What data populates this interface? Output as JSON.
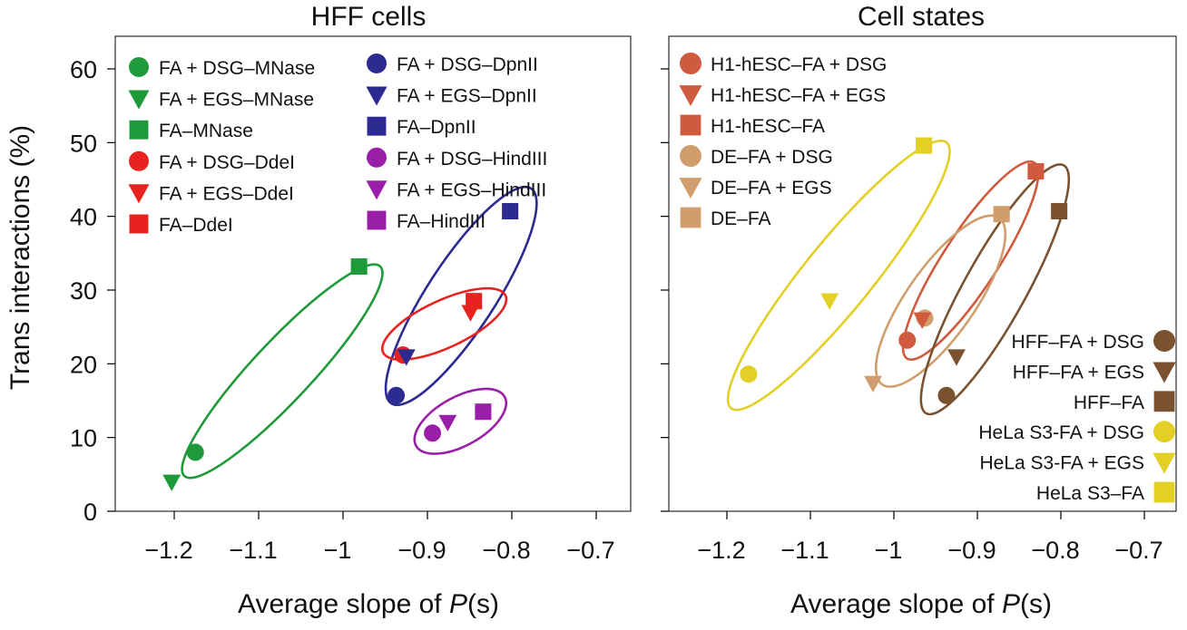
{
  "chart_data": [
    {
      "type": "scatter",
      "title": "HFF cells",
      "xlabel": "Average slope of ",
      "xlabel_italic": "P",
      "xlabel_suffix": "(s)",
      "ylabel": "Trans interactions (%)",
      "xlim": [
        -1.265,
        -0.655
      ],
      "ylim": [
        0,
        63
      ],
      "xticks": [
        -1.2,
        -1.1,
        -1,
        -0.9,
        -0.8,
        -0.7
      ],
      "xtick_labels": [
        "−1.2",
        "−1.1",
        "−1",
        "−0.9",
        "−0.8",
        "−0.7"
      ],
      "yticks": [
        0,
        10,
        20,
        30,
        40,
        50,
        60
      ],
      "ytick_labels": [
        "0",
        "10",
        "20",
        "30",
        "40",
        "50",
        "60"
      ],
      "legend": [
        {
          "label": "FA + DSG–MNase",
          "color": "#1f9a3a",
          "marker": "circle"
        },
        {
          "label": "FA + EGS–MNase",
          "color": "#1f9a3a",
          "marker": "triangle"
        },
        {
          "label": "FA–MNase",
          "color": "#1f9a3a",
          "marker": "square"
        },
        {
          "label": "FA + DSG–DdeI",
          "color": "#e8231f",
          "marker": "circle"
        },
        {
          "label": "FA + EGS–DdeI",
          "color": "#e8231f",
          "marker": "triangle"
        },
        {
          "label": "FA–DdeI",
          "color": "#e8231f",
          "marker": "square"
        },
        {
          "label": "FA + DSG–DpnII",
          "color": "#2d2a92",
          "marker": "circle"
        },
        {
          "label": "FA + EGS–DpnII",
          "color": "#2d2a92",
          "marker": "triangle"
        },
        {
          "label": "FA–DpnII",
          "color": "#2d2a92",
          "marker": "square"
        },
        {
          "label": "FA + DSG–HindIII",
          "color": "#9a1fa8",
          "marker": "circle"
        },
        {
          "label": "FA + EGS–HindIII",
          "color": "#9a1fa8",
          "marker": "triangle"
        },
        {
          "label": "FA–HindIII",
          "color": "#9a1fa8",
          "marker": "square"
        }
      ],
      "points": [
        {
          "series": "FA + DSG–MNase",
          "x": -1.175,
          "y": 8.0,
          "marker": "circle",
          "color": "#1f9a3a"
        },
        {
          "series": "FA + EGS–MNase",
          "x": -1.203,
          "y": 4.0,
          "marker": "triangle",
          "color": "#1f9a3a"
        },
        {
          "series": "FA–MNase",
          "x": -0.981,
          "y": 33.2,
          "marker": "square",
          "color": "#1f9a3a"
        },
        {
          "series": "FA + DSG–DdeI",
          "x": -0.929,
          "y": 21.2,
          "marker": "circle",
          "color": "#e8231f"
        },
        {
          "series": "FA + EGS–DdeI",
          "x": -0.849,
          "y": 27.0,
          "marker": "triangle",
          "color": "#e8231f"
        },
        {
          "series": "FA–DdeI",
          "x": -0.845,
          "y": 28.5,
          "marker": "square",
          "color": "#e8231f"
        },
        {
          "series": "FA + DSG–DpnII",
          "x": -0.937,
          "y": 15.7,
          "marker": "circle",
          "color": "#2d2a92"
        },
        {
          "series": "FA + EGS–DpnII",
          "x": -0.925,
          "y": 21.0,
          "marker": "triangle",
          "color": "#2d2a92"
        },
        {
          "series": "FA–DpnII",
          "x": -0.802,
          "y": 40.7,
          "marker": "square",
          "color": "#2d2a92"
        },
        {
          "series": "FA + DSG–HindIII",
          "x": -0.894,
          "y": 10.6,
          "marker": "circle",
          "color": "#9a1fa8"
        },
        {
          "series": "FA + EGS–HindIII",
          "x": -0.876,
          "y": 12.1,
          "marker": "triangle",
          "color": "#9a1fa8"
        },
        {
          "series": "FA–HindIII",
          "x": -0.834,
          "y": 13.5,
          "marker": "square",
          "color": "#9a1fa8"
        }
      ],
      "ellipses": [
        {
          "color": "#1f9a3a",
          "cx": -1.072,
          "cy": 19.0,
          "rx": 0.17,
          "ry": 4.0,
          "angle_deg": -47
        },
        {
          "color": "#2d2a92",
          "cx": -0.86,
          "cy": 29.2,
          "rx": 0.152,
          "ry": 4.6,
          "angle_deg": -57
        },
        {
          "color": "#e8231f",
          "cx": -0.88,
          "cy": 25.4,
          "rx": 0.08,
          "ry": 3.2,
          "angle_deg": -25
        },
        {
          "color": "#9a1fa8",
          "cx": -0.861,
          "cy": 12.2,
          "rx": 0.06,
          "ry": 3.3,
          "angle_deg": -29
        }
      ]
    },
    {
      "type": "scatter",
      "title": "Cell states",
      "xlabel": "Average slope of ",
      "xlabel_italic": "P",
      "xlabel_suffix": "(s)",
      "xlim": [
        -1.265,
        -0.655
      ],
      "ylim": [
        0,
        63
      ],
      "xticks": [
        -1.2,
        -1.1,
        -1,
        -0.9,
        -0.8,
        -0.7
      ],
      "xtick_labels": [
        "−1.2",
        "−1.1",
        "−1",
        "−0.9",
        "−0.8",
        "−0.7"
      ],
      "yticks": [
        0,
        10,
        20,
        30,
        40,
        50,
        60
      ],
      "legend_top": [
        {
          "label": "H1-hESC–FA + DSG",
          "color": "#cf5a3d",
          "marker": "circle"
        },
        {
          "label": "H1-hESC–FA + EGS",
          "color": "#cf5a3d",
          "marker": "triangle"
        },
        {
          "label": "H1-hESC–FA",
          "color": "#cf5a3d",
          "marker": "square"
        },
        {
          "label": "DE–FA + DSG",
          "color": "#cf9e6c",
          "marker": "circle"
        },
        {
          "label": "DE–FA + EGS",
          "color": "#cf9e6c",
          "marker": "triangle"
        },
        {
          "label": "DE–FA",
          "color": "#cf9e6c",
          "marker": "square"
        }
      ],
      "legend_bottom": [
        {
          "label": "HFF–FA + DSG",
          "color": "#7a5230",
          "marker": "circle"
        },
        {
          "label": "HFF–FA + EGS",
          "color": "#7a5230",
          "marker": "triangle"
        },
        {
          "label": "HFF–FA",
          "color": "#7a5230",
          "marker": "square"
        },
        {
          "label": "HeLa S3-FA + DSG",
          "color": "#e3cf25",
          "marker": "circle"
        },
        {
          "label": "HeLa S3-FA + EGS",
          "color": "#e3cf25",
          "marker": "triangle"
        },
        {
          "label": "HeLa S3–FA",
          "color": "#e3cf25",
          "marker": "square"
        }
      ],
      "points": [
        {
          "series": "HeLa S3-FA + DSG",
          "x": -1.174,
          "y": 18.6,
          "marker": "circle",
          "color": "#e3cf25"
        },
        {
          "series": "HeLa S3-FA + EGS",
          "x": -1.077,
          "y": 28.6,
          "marker": "triangle",
          "color": "#e3cf25"
        },
        {
          "series": "HeLa S3–FA",
          "x": -0.964,
          "y": 49.6,
          "marker": "square",
          "color": "#e3cf25"
        },
        {
          "series": "DE–FA + DSG",
          "x": -0.963,
          "y": 26.2,
          "marker": "circle",
          "color": "#cf9e6c"
        },
        {
          "series": "DE–FA + EGS",
          "x": -1.025,
          "y": 17.4,
          "marker": "triangle",
          "color": "#cf9e6c"
        },
        {
          "series": "DE–FA",
          "x": -0.871,
          "y": 40.3,
          "marker": "square",
          "color": "#cf9e6c"
        },
        {
          "series": "H1-hESC–FA + DSG",
          "x": -0.984,
          "y": 23.2,
          "marker": "circle",
          "color": "#cf5a3d"
        },
        {
          "series": "H1-hESC–FA + EGS",
          "x": -0.966,
          "y": 26.0,
          "marker": "triangle",
          "color": "#cf5a3d"
        },
        {
          "series": "H1-hESC–FA",
          "x": -0.83,
          "y": 46.1,
          "marker": "square",
          "color": "#cf5a3d"
        },
        {
          "series": "HFF–FA + DSG",
          "x": -0.937,
          "y": 15.7,
          "marker": "circle",
          "color": "#7a5230"
        },
        {
          "series": "HFF–FA + EGS",
          "x": -0.925,
          "y": 21.0,
          "marker": "triangle",
          "color": "#7a5230"
        },
        {
          "series": "HFF–FA",
          "x": -0.802,
          "y": 40.7,
          "marker": "square",
          "color": "#7a5230"
        }
      ],
      "ellipses": [
        {
          "color": "#e3cf25",
          "cx": -1.066,
          "cy": 32.0,
          "rx": 0.205,
          "ry": 4.6,
          "angle_deg": -51
        },
        {
          "color": "#cf5a3d",
          "cx": -0.908,
          "cy": 34.0,
          "rx": 0.14,
          "ry": 3.7,
          "angle_deg": -57
        },
        {
          "color": "#cf9e6c",
          "cx": -0.944,
          "cy": 28.5,
          "rx": 0.122,
          "ry": 4.6,
          "angle_deg": -55
        },
        {
          "color": "#7a5230",
          "cx": -0.879,
          "cy": 30.1,
          "rx": 0.17,
          "ry": 4.2,
          "angle_deg": -61
        }
      ]
    }
  ]
}
